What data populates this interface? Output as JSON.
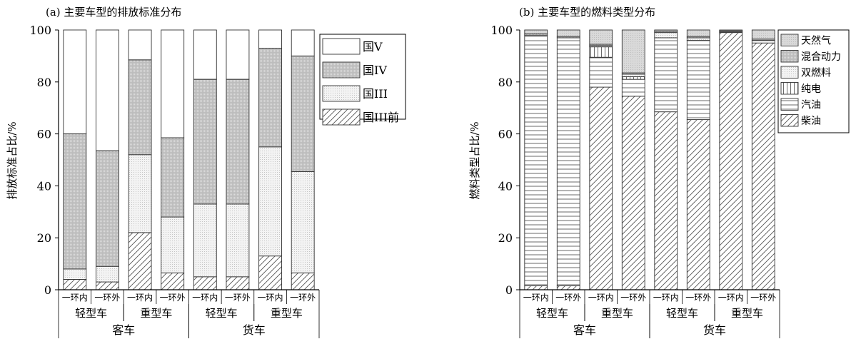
{
  "chart_data": [
    {
      "type": "bar",
      "stacked": true,
      "title": "(a) 主要车型的排放标准分布",
      "ylabel": "排放标准占比/%",
      "ylim": [
        0,
        100
      ],
      "yticks": [
        0,
        20,
        40,
        60,
        80,
        100
      ],
      "categories": [
        "一环内",
        "一环外",
        "一环内",
        "一环外",
        "一环内",
        "一环外",
        "一环内",
        "一环外"
      ],
      "groups": [
        {
          "label": "轻型车",
          "span": [
            0,
            1
          ]
        },
        {
          "label": "重型车",
          "span": [
            2,
            3
          ]
        },
        {
          "label": "轻型车",
          "span": [
            4,
            5
          ]
        },
        {
          "label": "重型车",
          "span": [
            6,
            7
          ]
        }
      ],
      "supergroups": [
        {
          "label": "客车",
          "span": [
            0,
            3
          ]
        },
        {
          "label": "货车",
          "span": [
            4,
            7
          ]
        }
      ],
      "legend_placement": "top-right",
      "series": [
        {
          "name": "国III前",
          "pattern": "diagonal",
          "values": [
            4,
            3,
            22,
            6.5,
            5,
            5,
            13,
            6.5
          ]
        },
        {
          "name": "国III",
          "pattern": "fine-dots",
          "values": [
            4,
            6,
            30,
            21.5,
            28,
            28,
            42,
            39
          ]
        },
        {
          "name": "国IV",
          "pattern": "dense-dots",
          "values": [
            52,
            44.5,
            36.5,
            30.5,
            48,
            48,
            38,
            44.5
          ]
        },
        {
          "name": "国V",
          "pattern": "blank",
          "values": [
            40,
            46.5,
            11.5,
            41.5,
            19,
            19,
            7,
            10
          ]
        }
      ]
    },
    {
      "type": "bar",
      "stacked": true,
      "title": "(b) 主要车型的燃料类型分布",
      "ylabel": "燃料类型占比/%",
      "ylim": [
        0,
        100
      ],
      "yticks": [
        0,
        20,
        40,
        60,
        80,
        100
      ],
      "categories": [
        "一环内",
        "一环外",
        "一环内",
        "一环外",
        "一环内",
        "一环外",
        "一环内",
        "一环外"
      ],
      "groups": [
        {
          "label": "轻型车",
          "span": [
            0,
            1
          ]
        },
        {
          "label": "重型车",
          "span": [
            2,
            3
          ]
        },
        {
          "label": "轻型车",
          "span": [
            4,
            5
          ]
        },
        {
          "label": "重型车",
          "span": [
            6,
            7
          ]
        }
      ],
      "supergroups": [
        {
          "label": "客车",
          "span": [
            0,
            3
          ]
        },
        {
          "label": "货车",
          "span": [
            4,
            7
          ]
        }
      ],
      "legend_placement": "top-right",
      "series": [
        {
          "name": "柴油",
          "pattern": "diagonal",
          "values": [
            1.5,
            1.5,
            78,
            74.5,
            68.5,
            65.5,
            99,
            95
          ]
        },
        {
          "name": "汽油",
          "pattern": "horizontal",
          "values": [
            96.5,
            95.5,
            11.5,
            6.5,
            28.5,
            30.5,
            0.3,
            1
          ]
        },
        {
          "name": "纯电",
          "pattern": "vertical",
          "values": [
            0,
            0,
            4,
            1,
            0,
            0,
            0,
            0
          ]
        },
        {
          "name": "双燃料",
          "pattern": "fine-dots",
          "values": [
            0,
            0,
            0.5,
            1,
            2,
            1,
            0,
            0
          ]
        },
        {
          "name": "混合动力",
          "pattern": "dense-dots",
          "values": [
            0.5,
            0.5,
            0.5,
            0.5,
            0.5,
            0.5,
            0.4,
            0.5
          ]
        },
        {
          "name": "天然气",
          "pattern": "light-dots",
          "values": [
            1.5,
            2.5,
            5.5,
            16.5,
            0.5,
            2.5,
            0.3,
            3.5
          ]
        }
      ]
    }
  ]
}
